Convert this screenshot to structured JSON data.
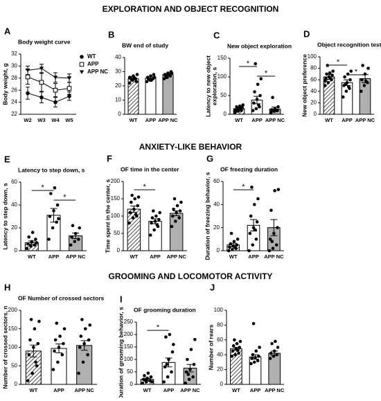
{
  "sections": [
    "EXPLORATION AND OBJECT RECOGNITION",
    "ANXIETY-LIKE BEHAVIOR",
    "GROOMING  AND LOCOMOTOR ACTIVITY"
  ],
  "chart_data": [
    {
      "panel": "A",
      "type": "line",
      "title": "Body weight curve",
      "ylabel": "Body weight, g",
      "categories": [
        "W2",
        "W3",
        "W4",
        "W5"
      ],
      "ylim": [
        22,
        32
      ],
      "yticks": [
        22,
        24,
        26,
        28,
        30,
        32
      ],
      "legend": "right",
      "series": [
        {
          "name": "WT",
          "marker": "circle",
          "color": "#000000",
          "values": [
            25.5,
            24.8,
            24.0,
            25.0
          ],
          "errors": [
            1,
            0.9,
            0.8,
            0.7
          ]
        },
        {
          "name": "APP",
          "marker": "square",
          "color": "#000000",
          "values": [
            28.2,
            27.3,
            26.0,
            26.3
          ],
          "errors": [
            1.2,
            1.5,
            1.1,
            1
          ]
        },
        {
          "name": "APP NC",
          "marker": "triangle",
          "color": "#000000",
          "values": [
            29.3,
            29.6,
            28.1,
            28.0
          ],
          "errors": [
            0.7,
            0.7,
            0.8,
            0.7
          ]
        }
      ]
    },
    {
      "panel": "B",
      "type": "bar",
      "title": "BW end of study",
      "categories": [
        "WT",
        "APP",
        "APP NC"
      ],
      "colors": [
        "hatch",
        "#ffffff",
        "#b0b0b0"
      ],
      "ylim": [
        0,
        40
      ],
      "yticks": [
        0,
        10,
        20,
        30,
        40
      ],
      "values": [
        25,
        25.5,
        28
      ],
      "errors": [
        0.8,
        0.9,
        0.8
      ],
      "points": [
        [
          22,
          24,
          25,
          26,
          27,
          23,
          25,
          26,
          28,
          24,
          25,
          26
        ],
        [
          23,
          24,
          25,
          26,
          27,
          28,
          25,
          24,
          26
        ],
        [
          25,
          26,
          27,
          28,
          29,
          30,
          27,
          28,
          29,
          26
        ]
      ]
    },
    {
      "panel": "C",
      "type": "bar",
      "title": "New object exploration",
      "ylabel": [
        "Latency to new object",
        "exploration, s"
      ],
      "categories": [
        "WT",
        "APP",
        "APP NC"
      ],
      "colors": [
        "hatch",
        "#ffffff",
        "#b0b0b0"
      ],
      "ylim": [
        0,
        150
      ],
      "yticks": [
        0,
        50,
        100,
        150
      ],
      "values": [
        15,
        38,
        14
      ],
      "errors": [
        3,
        10,
        5
      ],
      "significance": [
        {
          "pair": [
            0,
            1
          ],
          "label": "*"
        },
        {
          "pair": [
            1,
            2
          ],
          "label": "*"
        }
      ],
      "points": [
        [
          5,
          8,
          10,
          12,
          15,
          18,
          20,
          22,
          25,
          10,
          14,
          12
        ],
        [
          10,
          15,
          20,
          30,
          40,
          50,
          60,
          80,
          95,
          135,
          25
        ],
        [
          5,
          8,
          10,
          12,
          15,
          20,
          45,
          10
        ]
      ]
    },
    {
      "panel": "D",
      "type": "bar",
      "title": "Object recognition test",
      "ylabel": "New object preference",
      "categories": [
        "WT",
        "APP",
        "APP NC"
      ],
      "colors": [
        "hatch",
        "#ffffff",
        "#b0b0b0"
      ],
      "ylim": [
        0,
        100
      ],
      "yticks": [
        0,
        20,
        40,
        60,
        80,
        100
      ],
      "values": [
        65,
        55,
        62
      ],
      "errors": [
        4,
        5,
        7
      ],
      "significance": [
        {
          "pair": [
            0,
            1
          ],
          "label": "*"
        },
        {
          "pair": [
            1,
            2
          ],
          "label": "*"
        }
      ],
      "points": [
        [
          50,
          55,
          60,
          62,
          65,
          68,
          70,
          72,
          75,
          85,
          62,
          58
        ],
        [
          30,
          40,
          45,
          50,
          55,
          60,
          65,
          70,
          75,
          52,
          48
        ],
        [
          40,
          50,
          55,
          60,
          70,
          80,
          85,
          58
        ]
      ]
    },
    {
      "panel": "E",
      "type": "bar",
      "title": "Latency to step down, s",
      "ylabel": "Latency to step down, s",
      "categories": [
        "WT",
        "APP",
        "APP NC"
      ],
      "colors": [
        "hatch",
        "#ffffff",
        "#b0b0b0"
      ],
      "ylim": [
        0,
        60
      ],
      "yticks": [
        0,
        20,
        40,
        60
      ],
      "values": [
        7,
        31,
        13
      ],
      "errors": [
        1.5,
        6,
        2.5
      ],
      "significance": [
        {
          "pair": [
            0,
            1
          ],
          "label": "*"
        },
        {
          "pair": [
            1,
            2
          ],
          "label": "*"
        }
      ],
      "points": [
        [
          2,
          4,
          5,
          6,
          8,
          10,
          12,
          16,
          7
        ],
        [
          10,
          20,
          25,
          30,
          35,
          40,
          50,
          55,
          28
        ],
        [
          5,
          8,
          10,
          12,
          15,
          20,
          22
        ]
      ]
    },
    {
      "panel": "F",
      "type": "bar",
      "title": "OF time in the center",
      "ylabel": "Time spent in the center, s",
      "categories": [
        "WT",
        "APP",
        "APP NC"
      ],
      "colors": [
        "hatch",
        "#ffffff",
        "#b0b0b0"
      ],
      "ylim": [
        0,
        200
      ],
      "yticks": [
        0,
        50,
        100,
        150,
        200
      ],
      "values": [
        120,
        85,
        108
      ],
      "errors": [
        9,
        7,
        7
      ],
      "significance": [
        {
          "pair": [
            0,
            1
          ],
          "label": "*"
        }
      ],
      "points": [
        [
          80,
          95,
          100,
          110,
          120,
          130,
          140,
          150,
          155,
          160,
          105
        ],
        [
          45,
          60,
          70,
          80,
          85,
          90,
          95,
          100,
          110,
          115,
          75
        ],
        [
          70,
          85,
          95,
          100,
          110,
          115,
          120,
          130,
          140,
          150
        ]
      ]
    },
    {
      "panel": "G",
      "type": "bar",
      "title": "OF freezing duration",
      "ylabel": "Duration of freezing behavior, s",
      "categories": [
        "WT",
        "APP",
        "APP NC"
      ],
      "colors": [
        "hatch",
        "#ffffff",
        "#b0b0b0"
      ],
      "ylim": [
        0,
        60
      ],
      "yticks": [
        0,
        20,
        40,
        60
      ],
      "values": [
        5,
        22,
        20
      ],
      "errors": [
        1.5,
        5,
        7
      ],
      "significance": [
        {
          "pair": [
            0,
            1
          ],
          "label": "*"
        }
      ],
      "points": [
        [
          0,
          1,
          2,
          3,
          4,
          5,
          6,
          8,
          10,
          15,
          3
        ],
        [
          0,
          5,
          10,
          15,
          20,
          25,
          30,
          40,
          45,
          55,
          18
        ],
        [
          0,
          2,
          5,
          10,
          15,
          20,
          35,
          52,
          53,
          8
        ]
      ]
    },
    {
      "panel": "H",
      "type": "bar",
      "title": "OF Number of crossed sectors",
      "ylabel": "Number of crossed sectors, n",
      "categories": [
        "WT",
        "APP",
        "APP NC"
      ],
      "colors": [
        "hatch",
        "#ffffff",
        "#b0b0b0"
      ],
      "ylim": [
        0,
        200
      ],
      "yticks": [
        0,
        50,
        100,
        150,
        200
      ],
      "values": [
        90,
        97,
        105
      ],
      "errors": [
        16,
        12,
        13
      ],
      "points": [
        [
          10,
          30,
          50,
          80,
          100,
          110,
          120,
          150,
          170,
          175,
          60
        ],
        [
          40,
          60,
          80,
          90,
          100,
          110,
          120,
          130,
          150,
          165
        ],
        [
          30,
          60,
          80,
          100,
          110,
          120,
          130,
          150,
          160,
          175
        ]
      ]
    },
    {
      "panel": "I",
      "type": "bar",
      "title": "OF grooming duration",
      "ylabel": "Duration of grooming behavior, s",
      "categories": [
        "WT",
        "APP",
        "APP NC"
      ],
      "colors": [
        "hatch",
        "#ffffff",
        "#b0b0b0"
      ],
      "ylim": [
        0,
        250
      ],
      "yticks": [
        0,
        50,
        100,
        150,
        200,
        250
      ],
      "values": [
        20,
        88,
        65
      ],
      "errors": [
        4,
        18,
        15
      ],
      "significance": [
        {
          "pair": [
            0,
            1
          ],
          "label": "*"
        }
      ],
      "points": [
        [
          5,
          10,
          15,
          20,
          25,
          30,
          35,
          45,
          10,
          18
        ],
        [
          10,
          30,
          50,
          70,
          100,
          130,
          190,
          200,
          160,
          80
        ],
        [
          5,
          20,
          30,
          50,
          60,
          80,
          100,
          140,
          180,
          40
        ]
      ]
    },
    {
      "panel": "J",
      "type": "bar",
      "ylabel": "Number of rears",
      "categories": [
        "WT",
        "APP",
        "APP NC"
      ],
      "colors": [
        "hatch",
        "#ffffff",
        "#b0b0b0"
      ],
      "ylim": [
        0,
        100
      ],
      "yticks": [
        0,
        20,
        40,
        60,
        80,
        100
      ],
      "values": [
        48,
        37,
        42
      ],
      "errors": [
        2,
        3,
        3
      ],
      "points": [
        [
          38,
          40,
          42,
          45,
          48,
          50,
          52,
          55,
          58,
          60,
          46
        ],
        [
          28,
          30,
          32,
          35,
          36,
          38,
          40,
          45,
          50,
          82
        ],
        [
          35,
          38,
          40,
          42,
          45,
          50,
          55,
          58
        ]
      ]
    }
  ]
}
